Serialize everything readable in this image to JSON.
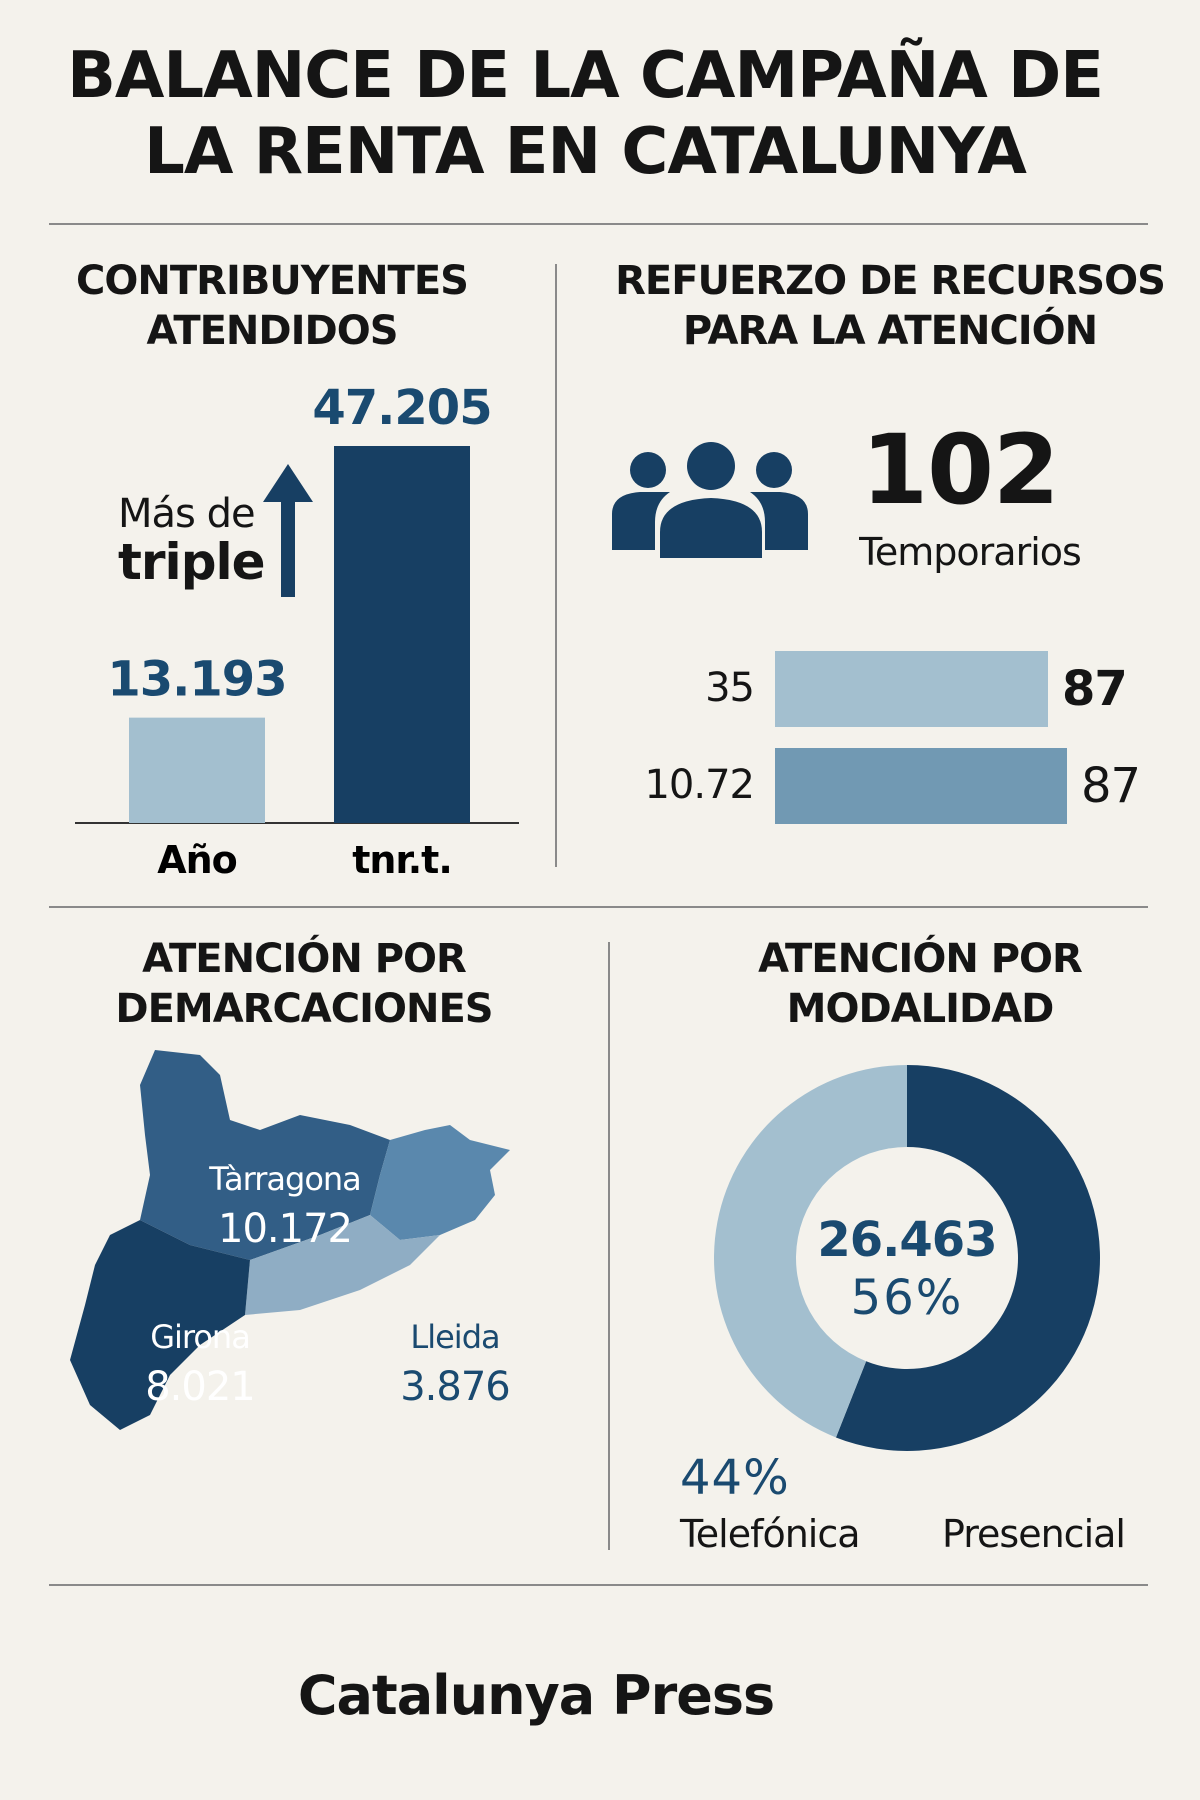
{
  "title": {
    "line1": "BALANCE DE LA CAMPAÑA DE",
    "line2": "LA RENTA EN CATALUNYA"
  },
  "contribuyentes": {
    "title_line1": "CONTRIBUYENTES",
    "title_line2": "ATENDIDOS",
    "annotation_line1": "Más de",
    "annotation_line2": "triple"
  },
  "recursos": {
    "title_line1": "REFUERZO DE RECURSOS",
    "title_line2": "PARA LA ATENCIÓN",
    "big_number": "102",
    "big_label": "Temporarios",
    "rows": [
      {
        "left": "35",
        "right": "87"
      },
      {
        "left": "10.72",
        "right": "87"
      }
    ]
  },
  "demarcaciones": {
    "title_line1": "ATENCIÓN POR",
    "title_line2": "DEMARCACIONES",
    "regions": [
      {
        "name": "Tàrragona",
        "value": "10.172"
      },
      {
        "name": "Girona",
        "value": "8.021"
      },
      {
        "name": "Lleida",
        "value": "3.876"
      }
    ]
  },
  "modalidad": {
    "title_line1": "ATENCIÓN POR",
    "title_line2": "MODALIDAD",
    "center_value": "26.463",
    "center_pct": "56%",
    "light_pct": "44%",
    "label_left": "Telefónica",
    "label_right": "Presencial"
  },
  "footer": {
    "brand": "Catalunya Press"
  },
  "colors": {
    "dark": "#173f63",
    "light": "#a3bfcf",
    "mid": "#7199b3",
    "bg": "#f4f2ec"
  },
  "chart_data": [
    {
      "type": "bar",
      "title": "CONTRIBUYENTES ATENDIDOS",
      "categories": [
        "Año",
        "tnr.t."
      ],
      "values": [
        13193,
        47205
      ],
      "value_labels": [
        "13.193",
        "47.205"
      ],
      "ylim": [
        0,
        50000
      ]
    },
    {
      "type": "bar",
      "orientation": "horizontal",
      "title": "REFUERZO DE RECURSOS PARA LA ATENCIÓN",
      "categories": [
        "35",
        "10.72"
      ],
      "values": [
        87,
        87
      ]
    },
    {
      "type": "pie",
      "title": "ATENCIÓN POR MODALIDAD",
      "categories": [
        "Presencial",
        "Telefónica"
      ],
      "values": [
        56,
        44
      ]
    }
  ]
}
